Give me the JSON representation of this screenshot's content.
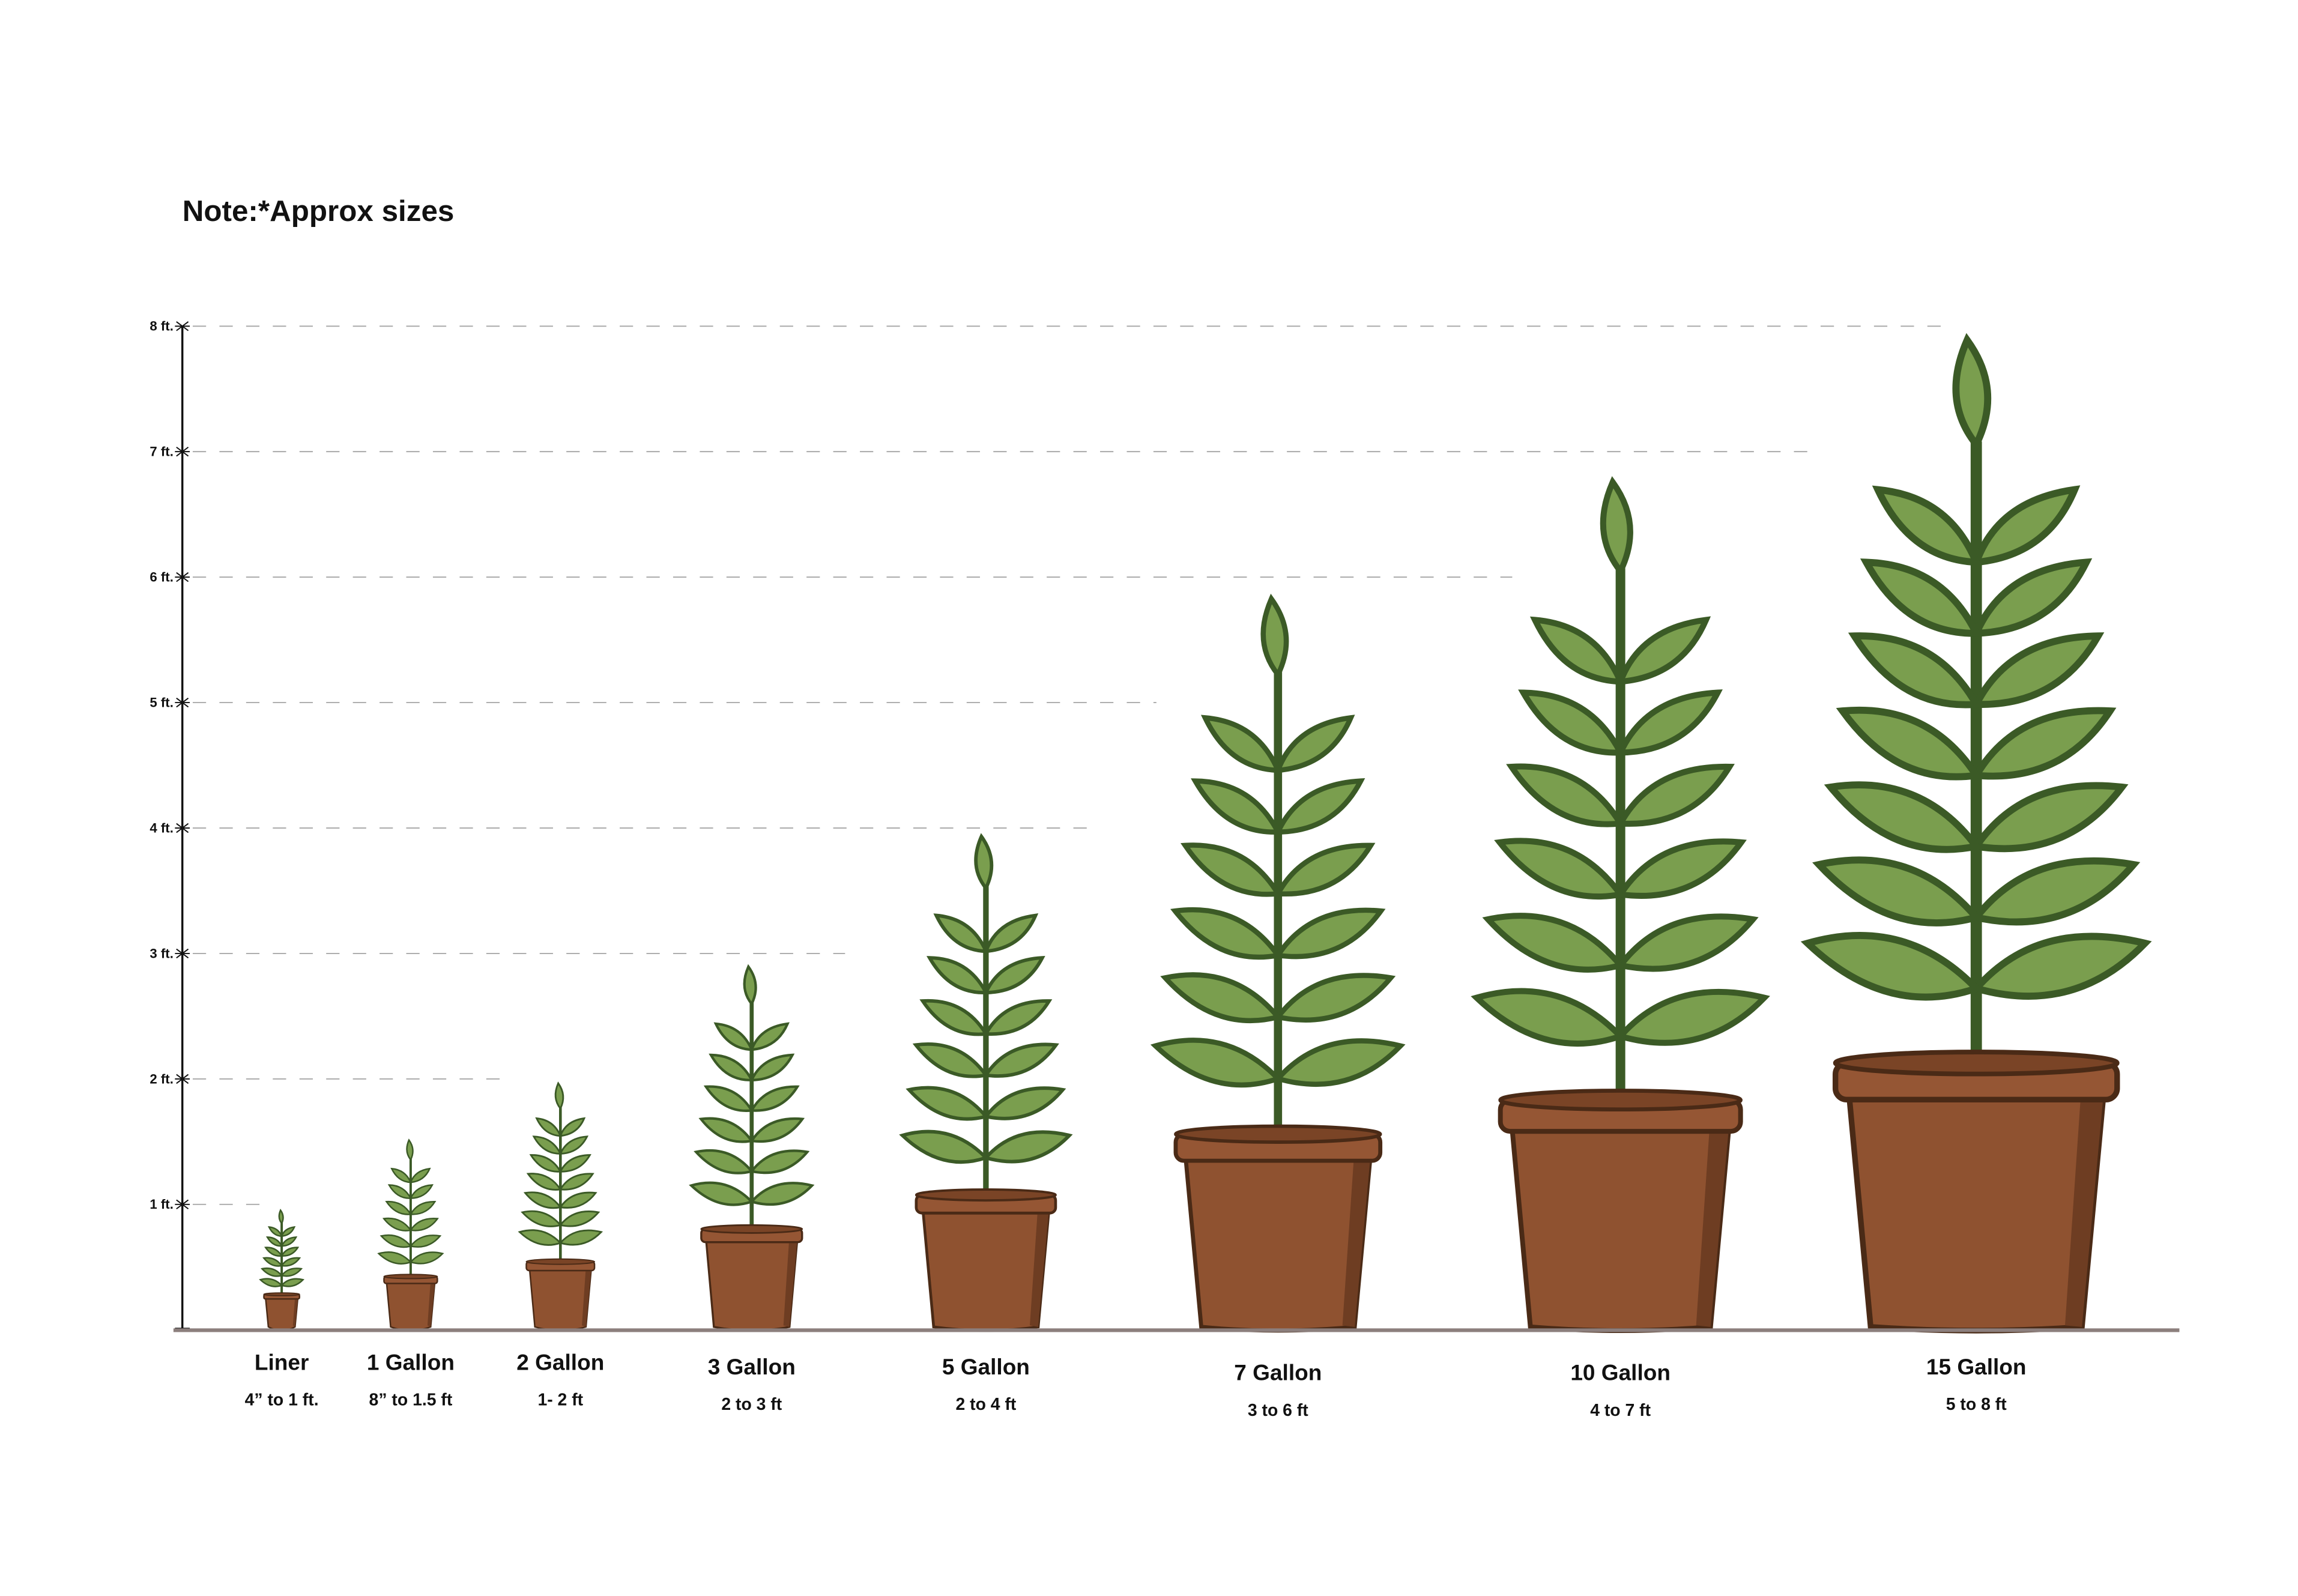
{
  "note": "Note:*Approx sizes",
  "chart_data": {
    "type": "bar",
    "title": "",
    "ylabel": "",
    "xlabel": "",
    "ylim": [
      0,
      8
    ],
    "y_ticks": [
      "1 ft.",
      "2 ft.",
      "3 ft.",
      "4 ft.",
      "5 ft.",
      "6 ft.",
      "7 ft.",
      "8 ft."
    ],
    "grid": "dashed horizontal, each line ending just past the plant that reaches it",
    "categories": [
      "Liner",
      "1 Gallon",
      "2 Gallon",
      "3 Gallon",
      "5 Gallon",
      "7 Gallon",
      "10 Gallon",
      "15 Gallon"
    ],
    "ranges": [
      "4” to 1 ft.",
      "8” to 1.5 ft",
      "1- 2 ft",
      "2 to 3 ft",
      "2 to 4 ft",
      "3 to 6 ft",
      "4 to 7  ft",
      "5 to 8 ft"
    ],
    "series": [
      {
        "min_ft": [
          0.33,
          0.67,
          1,
          2,
          2,
          3,
          4,
          5
        ],
        "max_ft": [
          1,
          1.5,
          2,
          3,
          4,
          6,
          7,
          8
        ]
      }
    ],
    "colors": {
      "leaf": "#7a9e4e",
      "leaf_outline": "#3b5a26",
      "pot": "#8f5230",
      "pot_outline": "#4a2a16",
      "ground": "#8c7f7d"
    }
  }
}
